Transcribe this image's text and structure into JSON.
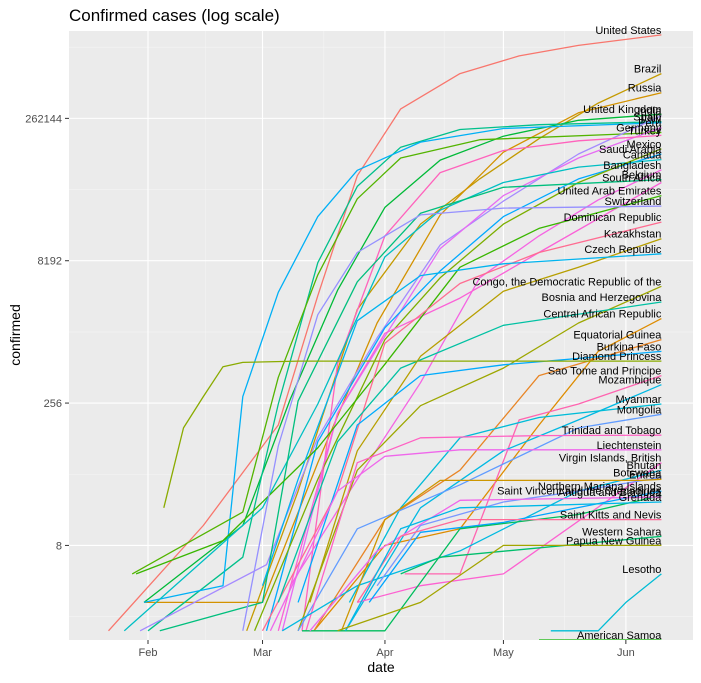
{
  "chart_data": {
    "type": "line",
    "title": "Confirmed cases (log scale)",
    "xlabel": "date",
    "ylabel": "confirmed",
    "y_scale": "log2",
    "xlim": [
      "2020-01-12",
      "2020-06-18"
    ],
    "ylim": [
      0.8,
      2200000
    ],
    "x_ticks": [
      {
        "date": "2020-02-01",
        "label": "Feb"
      },
      {
        "date": "2020-03-01",
        "label": "Mar"
      },
      {
        "date": "2020-04-01",
        "label": "Apr"
      },
      {
        "date": "2020-05-01",
        "label": "May"
      },
      {
        "date": "2020-06-01",
        "label": "Jun"
      }
    ],
    "y_ticks": [
      8,
      256,
      8192,
      262144
    ],
    "grid": true,
    "panel_background": "#EBEBEB",
    "series": [
      {
        "name": "United States",
        "color": "#F8766D",
        "x": [
          "2020-01-22",
          "2020-02-15",
          "2020-03-05",
          "2020-03-15",
          "2020-03-25",
          "2020-04-05",
          "2020-04-20",
          "2020-05-05",
          "2020-05-20",
          "2020-06-10"
        ],
        "y": [
          1,
          13,
          150,
          3500,
          65000,
          330000,
          780000,
          1200000,
          1550000,
          2000000
        ]
      },
      {
        "name": "Brazil",
        "color": "#C49A00",
        "x": [
          "2020-02-26",
          "2020-03-10",
          "2020-03-25",
          "2020-04-10",
          "2020-04-25",
          "2020-05-10",
          "2020-05-25",
          "2020-06-10"
        ],
        "y": [
          1,
          30,
          2500,
          20000,
          60000,
          160000,
          380000,
          780000
        ]
      },
      {
        "name": "Russia",
        "color": "#D39200",
        "x": [
          "2020-01-31",
          "2020-03-01",
          "2020-03-15",
          "2020-03-30",
          "2020-04-15",
          "2020-05-01",
          "2020-05-20",
          "2020-06-10"
        ],
        "y": [
          2,
          2,
          60,
          1800,
          25000,
          115000,
          300000,
          490000
        ]
      },
      {
        "name": "United Kingdom",
        "color": "#00BA38",
        "x": [
          "2020-01-31",
          "2020-02-25",
          "2020-03-08",
          "2020-03-20",
          "2020-04-01",
          "2020-04-15",
          "2020-05-01",
          "2020-05-20",
          "2020-06-10"
        ],
        "y": [
          2,
          13,
          280,
          4000,
          30000,
          95000,
          170000,
          250000,
          290000
        ]
      },
      {
        "name": "Spain",
        "color": "#00C08B",
        "x": [
          "2020-02-01",
          "2020-02-25",
          "2020-03-05",
          "2020-03-15",
          "2020-03-25",
          "2020-04-05",
          "2020-04-20",
          "2020-05-10",
          "2020-06-10"
        ],
        "y": [
          1,
          6,
          250,
          7800,
          50000,
          130000,
          200000,
          225000,
          242000
        ]
      },
      {
        "name": "Italy",
        "color": "#00B0F6",
        "x": [
          "2020-01-31",
          "2020-02-20",
          "2020-02-25",
          "2020-03-05",
          "2020-03-15",
          "2020-03-25",
          "2020-04-10",
          "2020-05-01",
          "2020-06-10"
        ],
        "y": [
          2,
          3,
          300,
          3800,
          24000,
          74000,
          147000,
          205000,
          236000
        ]
      },
      {
        "name": "Germany",
        "color": "#53B400",
        "x": [
          "2020-01-28",
          "2020-02-25",
          "2020-03-05",
          "2020-03-15",
          "2020-03-25",
          "2020-04-05",
          "2020-04-25",
          "2020-06-10"
        ],
        "y": [
          4,
          18,
          480,
          5800,
          37000,
          100000,
          156000,
          186000
        ]
      },
      {
        "name": "India",
        "color": "#A58AFF",
        "x": [
          "2020-01-30",
          "2020-03-02",
          "2020-03-15",
          "2020-03-30",
          "2020-04-15",
          "2020-05-01",
          "2020-05-20",
          "2020-06-10"
        ],
        "y": [
          1,
          5,
          110,
          1250,
          12000,
          35000,
          110000,
          280000
        ]
      },
      {
        "name": "Peru",
        "color": "#E76BF3",
        "x": [
          "2020-03-06",
          "2020-03-20",
          "2020-04-01",
          "2020-04-15",
          "2020-05-01",
          "2020-05-20",
          "2020-06-10"
        ],
        "y": [
          1,
          200,
          1300,
          11000,
          40000,
          100000,
          210000
        ]
      },
      {
        "name": "Turkey",
        "color": "#FF62BC",
        "x": [
          "2020-03-11",
          "2020-03-20",
          "2020-04-01",
          "2020-04-15",
          "2020-05-01",
          "2020-05-20",
          "2020-06-10"
        ],
        "y": [
          1,
          670,
          15000,
          70000,
          120000,
          152000,
          173000
        ]
      },
      {
        "name": "Saudi Arabia",
        "color": "#00A9FF",
        "x": [
          "2020-03-02",
          "2020-03-15",
          "2020-04-01",
          "2020-04-15",
          "2020-05-01",
          "2020-05-20",
          "2020-06-10"
        ],
        "y": [
          1,
          100,
          1600,
          6400,
          24000,
          60000,
          110000
        ]
      },
      {
        "name": "Canada",
        "color": "#00BFC4",
        "x": [
          "2020-01-26",
          "2020-03-01",
          "2020-03-15",
          "2020-04-01",
          "2020-04-15",
          "2020-05-01",
          "2020-05-20",
          "2020-06-10"
        ],
        "y": [
          1,
          20,
          250,
          9000,
          28000,
          55000,
          80000,
          96000
        ]
      },
      {
        "name": "Mexico",
        "color": "#7CAE00",
        "x": [
          "2020-02-28",
          "2020-03-15",
          "2020-04-01",
          "2020-04-15",
          "2020-05-01",
          "2020-05-20",
          "2020-06-10"
        ],
        "y": [
          1,
          40,
          1200,
          5400,
          20000,
          55000,
          125000
        ]
      },
      {
        "name": "Bangladesh",
        "color": "#F564E3",
        "x": [
          "2020-03-08",
          "2020-03-25",
          "2020-04-10",
          "2020-04-25",
          "2020-05-10",
          "2020-05-25",
          "2020-06-10"
        ],
        "y": [
          3,
          40,
          420,
          5400,
          15000,
          36000,
          75000
        ]
      },
      {
        "name": "South Africa",
        "color": "#FB61D7",
        "x": [
          "2020-03-05",
          "2020-03-20",
          "2020-04-01",
          "2020-04-20",
          "2020-05-10",
          "2020-06-10"
        ],
        "y": [
          1,
          200,
          1400,
          3300,
          10000,
          55000
        ]
      },
      {
        "name": "Belgium",
        "color": "#00BF7D",
        "x": [
          "2020-02-04",
          "2020-03-01",
          "2020-03-10",
          "2020-03-25",
          "2020-04-10",
          "2020-05-01",
          "2020-06-10"
        ],
        "y": [
          1,
          2,
          270,
          4900,
          26000,
          49000,
          59000
        ]
      },
      {
        "name": "United Arab Emirates",
        "color": "#39B600",
        "x": [
          "2020-01-29",
          "2020-02-20",
          "2020-03-15",
          "2020-04-01",
          "2020-04-20",
          "2020-05-10",
          "2020-06-10"
        ],
        "y": [
          4,
          9,
          86,
          660,
          7000,
          18000,
          40000
        ]
      },
      {
        "name": "Switzerland",
        "color": "#9590FF",
        "x": [
          "2020-02-25",
          "2020-03-05",
          "2020-03-15",
          "2020-03-25",
          "2020-04-10",
          "2020-05-01",
          "2020-06-10"
        ],
        "y": [
          1,
          90,
          2200,
          10000,
          25000,
          29500,
          31000
        ]
      },
      {
        "name": "Dominican Republic",
        "color": "#FF6C91",
        "x": [
          "2020-03-01",
          "2020-03-20",
          "2020-04-01",
          "2020-04-20",
          "2020-05-10",
          "2020-06-10"
        ],
        "y": [
          1,
          30,
          1100,
          4700,
          10000,
          21000
        ]
      },
      {
        "name": "Kazakhstan",
        "color": "#B79F00",
        "x": [
          "2020-03-13",
          "2020-03-25",
          "2020-04-10",
          "2020-05-01",
          "2020-05-20",
          "2020-06-10"
        ],
        "y": [
          2,
          80,
          800,
          3900,
          7000,
          14000
        ]
      },
      {
        "name": "Czech Republic",
        "color": "#00B4EF",
        "x": [
          "2020-03-01",
          "2020-03-10",
          "2020-03-25",
          "2020-04-10",
          "2020-05-01",
          "2020-06-10"
        ],
        "y": [
          3,
          40,
          1900,
          5700,
          7600,
          9700
        ]
      },
      {
        "name": "Congo, the Democratic Republic of the",
        "color": "#9DA700",
        "x": [
          "2020-03-10",
          "2020-03-25",
          "2020-04-10",
          "2020-05-01",
          "2020-05-20",
          "2020-06-10"
        ],
        "y": [
          1,
          50,
          240,
          600,
          1800,
          4400
        ]
      },
      {
        "name": "Bosnia and Herzegovina",
        "color": "#00C1A3",
        "x": [
          "2020-03-05",
          "2020-03-20",
          "2020-04-05",
          "2020-05-01",
          "2020-06-10"
        ],
        "y": [
          2,
          100,
          600,
          1700,
          3000
        ]
      },
      {
        "name": "Central African Republic",
        "color": "#DE8C00",
        "x": [
          "2020-03-14",
          "2020-04-01",
          "2020-04-20",
          "2020-05-10",
          "2020-05-25",
          "2020-06-10"
        ],
        "y": [
          1,
          8,
          12,
          150,
          900,
          2000
        ]
      },
      {
        "name": "Equatorial Guinea",
        "color": "#E88526",
        "x": [
          "2020-03-14",
          "2020-04-01",
          "2020-04-20",
          "2020-05-10",
          "2020-06-10"
        ],
        "y": [
          1,
          15,
          50,
          500,
          1200
        ]
      },
      {
        "name": "Burkina Faso",
        "color": "#00ABFD",
        "x": [
          "2020-03-10",
          "2020-03-25",
          "2020-04-10",
          "2020-05-01",
          "2020-06-10"
        ],
        "y": [
          2,
          150,
          500,
          650,
          900
        ]
      },
      {
        "name": "Diamond Princess",
        "color": "#8AAB00",
        "x": [
          "2020-02-05",
          "2020-02-10",
          "2020-02-15",
          "2020-02-20",
          "2020-02-25",
          "2020-03-10",
          "2020-06-10"
        ],
        "y": [
          20,
          140,
          300,
          620,
          690,
          712,
          712
        ]
      },
      {
        "name": "Sao Tome and Principe",
        "color": "#FF64B0",
        "x": [
          "2020-04-06",
          "2020-04-20",
          "2020-05-05",
          "2020-05-20",
          "2020-06-10"
        ],
        "y": [
          4,
          4,
          170,
          250,
          500
        ]
      },
      {
        "name": "Mozambique",
        "color": "#00B9E3",
        "x": [
          "2020-03-22",
          "2020-04-10",
          "2020-05-01",
          "2020-05-20",
          "2020-06-10"
        ],
        "y": [
          1,
          20,
          80,
          170,
          400
        ]
      },
      {
        "name": "Myanmar",
        "color": "#00BCD8",
        "x": [
          "2020-03-23",
          "2020-04-05",
          "2020-04-20",
          "2020-05-10",
          "2020-06-10"
        ],
        "y": [
          2,
          20,
          110,
          180,
          250
        ]
      },
      {
        "name": "Mongolia",
        "color": "#619CFF",
        "x": [
          "2020-03-10",
          "2020-03-25",
          "2020-04-20",
          "2020-05-20",
          "2020-06-10"
        ],
        "y": [
          1,
          12,
          35,
          140,
          195
        ]
      },
      {
        "name": "Trinidad and Tobago",
        "color": "#FF61C3",
        "x": [
          "2020-03-12",
          "2020-03-25",
          "2020-04-10",
          "2020-05-10",
          "2020-06-10"
        ],
        "y": [
          1,
          60,
          110,
          116,
          117
        ]
      },
      {
        "name": "Liechtenstein",
        "color": "#EF67EB",
        "x": [
          "2020-03-03",
          "2020-03-20",
          "2020-04-01",
          "2020-04-20",
          "2020-06-10"
        ],
        "y": [
          1,
          30,
          70,
          82,
          82
        ]
      },
      {
        "name": "Virgin Islands, British",
        "color": "#FD61D1",
        "x": [
          "2020-03-25",
          "2020-04-10",
          "2020-05-01",
          "2020-06-10"
        ],
        "y": [
          2,
          3,
          4,
          60
        ]
      },
      {
        "name": "Bhutan",
        "color": "#00BAE0",
        "x": [
          "2020-03-06",
          "2020-03-25",
          "2020-04-20",
          "2020-05-20",
          "2020-06-10"
        ],
        "y": [
          1,
          3,
          7,
          30,
          50
        ]
      },
      {
        "name": "Botswana",
        "color": "#7997FF",
        "x": [
          "2020-03-30",
          "2020-04-10",
          "2020-05-01",
          "2020-05-20",
          "2020-06-10"
        ],
        "y": [
          3,
          13,
          23,
          30,
          42
        ]
      },
      {
        "name": "Eritrea",
        "color": "#CD9600",
        "x": [
          "2020-03-21",
          "2020-04-01",
          "2020-04-15",
          "2020-06-05",
          "2020-06-10"
        ],
        "y": [
          1,
          15,
          39,
          39,
          40
        ]
      },
      {
        "name": "Northern Mariana Islands",
        "color": "#00A5FF",
        "x": [
          "2020-03-28",
          "2020-04-10",
          "2020-05-01",
          "2020-06-10"
        ],
        "y": [
          2,
          11,
          14,
          30
        ]
      },
      {
        "name": "Saint Vincent and the Grenadines",
        "color": "#00BD5C",
        "x": [
          "2020-03-11",
          "2020-04-01",
          "2020-04-20",
          "2020-05-20",
          "2020-06-10"
        ],
        "y": [
          1,
          1,
          12,
          17,
          27
        ]
      },
      {
        "name": "Antigua and Barbuda",
        "color": "#F066EA",
        "x": [
          "2020-03-13",
          "2020-03-30",
          "2020-04-20",
          "2020-06-10"
        ],
        "y": [
          1,
          7,
          24,
          26
        ]
      },
      {
        "name": "Saint Kitts and Nevis",
        "color": "#FF6A98",
        "x": [
          "2020-03-25",
          "2020-04-05",
          "2020-04-20",
          "2020-06-10"
        ],
        "y": [
          2,
          10,
          15,
          15
        ]
      },
      {
        "name": "Grenada",
        "color": "#00B8E7",
        "x": [
          "2020-03-22",
          "2020-04-05",
          "2020-04-20",
          "2020-06-10"
        ],
        "y": [
          1,
          12,
          20,
          23
        ]
      },
      {
        "name": "Western Sahara",
        "color": "#00BE6C",
        "x": [
          "2020-04-05",
          "2020-04-15",
          "2020-06-10"
        ],
        "y": [
          4,
          6,
          10
        ]
      },
      {
        "name": "Papua New Guinea",
        "color": "#A3A500",
        "x": [
          "2020-03-20",
          "2020-04-10",
          "2020-05-01",
          "2020-06-10"
        ],
        "y": [
          1,
          2,
          8,
          8
        ]
      },
      {
        "name": "Lesotho",
        "color": "#00BCD5",
        "x": [
          "2020-05-13",
          "2020-05-25",
          "2020-06-01",
          "2020-06-10"
        ],
        "y": [
          1,
          1,
          2,
          4
        ]
      },
      {
        "name": "American Samoa",
        "color": "#0CB702",
        "x": [
          "2020-05-10",
          "2020-06-10"
        ],
        "y": [
          0.8,
          0.8
        ]
      }
    ]
  }
}
